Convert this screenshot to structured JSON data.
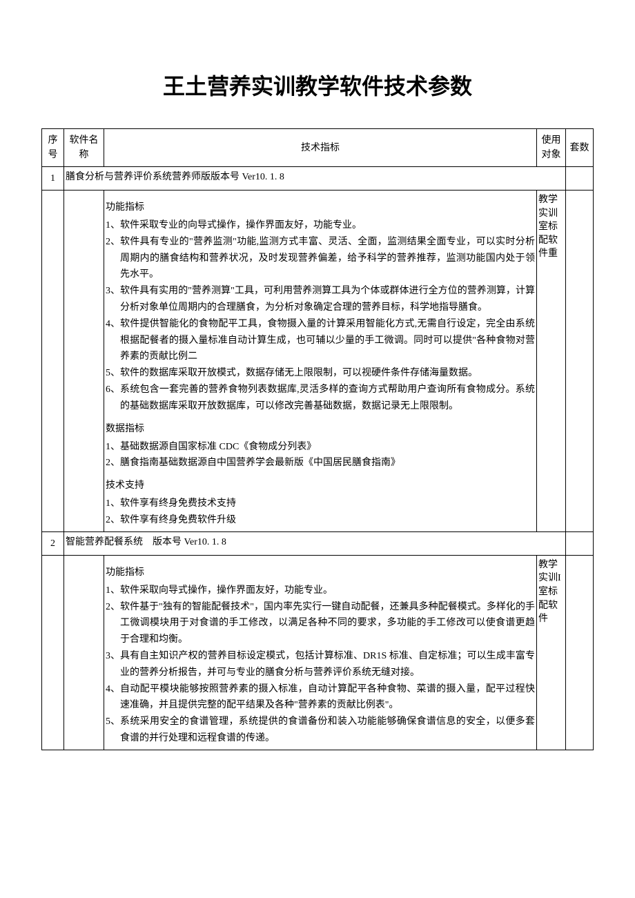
{
  "title": "王土营养实训教学软件技术参数",
  "table": {
    "headers": {
      "seq": "序号",
      "name": "软件名称",
      "spec": "技术指标",
      "user": "使用对象",
      "qty": "套数"
    },
    "rows": [
      {
        "seq": "1",
        "header_line": "膳食分析与营养评价系统营养师版版本号 Ver10. 1. 8",
        "user": "教学实训室标配软件重",
        "sections": [
          {
            "heading": "功能指标",
            "items": [
              {
                "num": "1、",
                "text": "软件采取专业的向导式操作，操作界面友好，功能专业。"
              },
              {
                "num": "2、",
                "text": "软件具有专业的\"营养监测\"功能,监测方式丰富、灵活、全面，监测结果全面专业，可以实时分析周期内的膳食结构和营养状况，及时发现营养偏差，给予科学的营养推荐，监测功能国内处于领先水平。"
              },
              {
                "num": "3、",
                "text": "软件具有实用的\"营养测算\"工具，可利用营养测算工具为个体或群体进行全方位的营养测算，计算分析对象单位周期内的合理膳食，为分析对象确定合理的营养目标，科学地指导膳食。"
              },
              {
                "num": "4、",
                "text": "软件提供智能化的食物配平工具，食物摄入量的计算采用智能化方式,无需自行设定，完全由系统根据配餐者的摄入量标准自动计算生成，也可辅以少量的手工微调。同时可以提供\"各种食物对营养素的贡献比例二"
              },
              {
                "num": "5、",
                "text": "软件的数据库采取开放模式，数据存储无上限限制，可以视硬件条件存储海量数据。"
              },
              {
                "num": "6、",
                "text": "系统包含一套完善的营养食物列表数据库,灵活多样的查询方式帮助用户查询所有食物成分。系统的基础数据库采取开放数据库，可以修改完善基础数据，数据记录无上限限制。"
              }
            ]
          },
          {
            "heading": "数据指标",
            "items": [
              {
                "num": "1、",
                "text": "基础数据源自国家标准 CDC《食物成分列表》"
              },
              {
                "num": "2、",
                "text": "膳食指南基础数据源自中国营养学会最新版《中国居民膳食指南》"
              }
            ]
          },
          {
            "heading": "技术支持",
            "items": [
              {
                "num": "1、",
                "text": "软件享有终身免费技术支持"
              },
              {
                "num": "2、",
                "text": "软件享有终身免费软件升级"
              }
            ]
          }
        ]
      },
      {
        "seq": "2",
        "header_line": "智能营养配餐系统　版本号 Ver10. 1. 8",
        "user": "教学实训I 室标配软件",
        "sections": [
          {
            "heading": "功能指标",
            "items": [
              {
                "num": "1、",
                "text": "软件采取向导式操作，操作界面友好，功能专业。"
              },
              {
                "num": "2、",
                "text": "软件基于\"独有的智能配餐技术\"，国内率先实行一键自动配餐，还兼具多种配餐模式。多样化的手工微调模块用于对食谱的手工修改，以满足各种不同的要求，多功能的手工修改可以使食谱更趋于合理和均衡。"
              },
              {
                "num": "3、",
                "text": "具有自主知识产权的营养目标设定模式，包括计算标准、DR1S 标准、自定标准；可以生成丰富专业的营养分析报告，并可与专业的膳食分析与营养评价系统无缝对接。"
              },
              {
                "num": "4、",
                "text": "自动配平模块能够按照营养素的摄入标准，自动计算配平各种食物、菜谱的摄入量，配平过程快速准确，并且提供完整的配平结果及各种\"营养素的贡献比例表\"。"
              },
              {
                "num": "5、",
                "text": "系统采用安全的食谱管理，系统提供的食谱备份和装入功能能够确保食谱信息的安全，以便多套食谱的并行处理和远程食谱的传递。"
              }
            ]
          }
        ]
      }
    ]
  }
}
